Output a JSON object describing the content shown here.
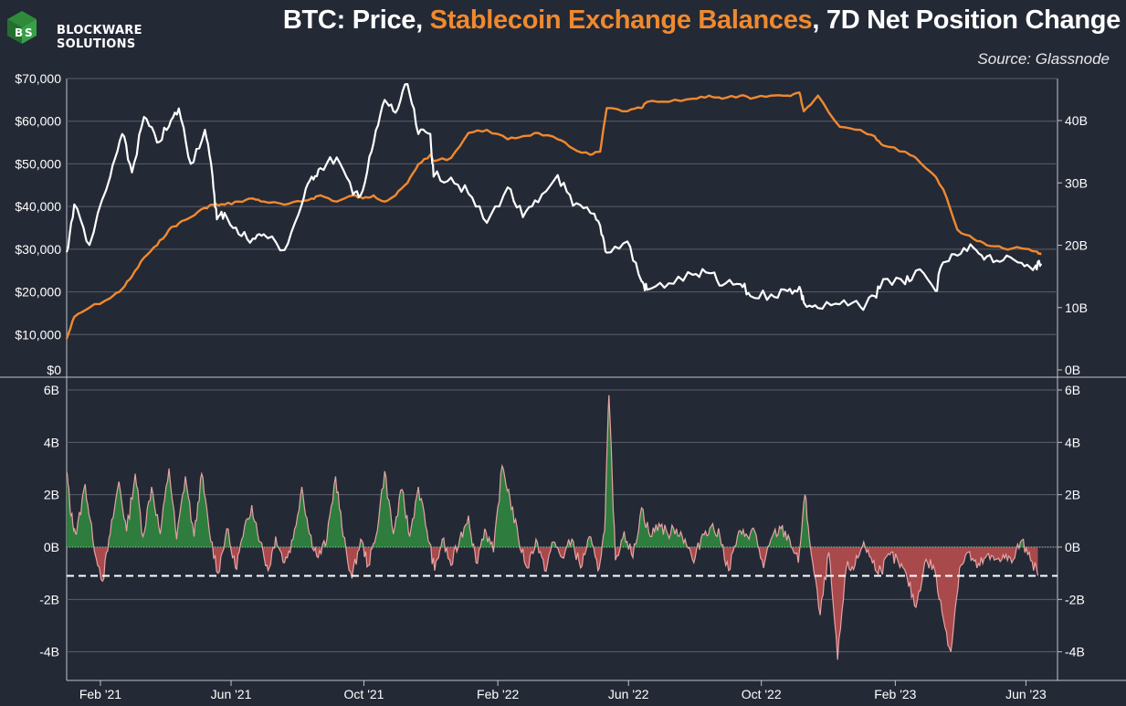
{
  "brand": {
    "line1": "BLOCKWARE",
    "line2": "SOLUTIONS",
    "logo_color": "#2e8b3a"
  },
  "title": {
    "part1": "BTC: Price, ",
    "part2": "Stablecoin Exchange Balances",
    "part3": ", 7D Net Position Change",
    "highlight_color": "#f0892e"
  },
  "source": "Source: Glassnode",
  "colors": {
    "background": "#242936",
    "price": "#ffffff",
    "stablecoin": "#f0892e",
    "positive_fill": "#2e7d3e",
    "negative_fill": "#a8494b",
    "area_stroke": "#e6a3a3",
    "grid": "#5a5f6b"
  },
  "chart_data": [
    {
      "type": "line",
      "name": "top-panel",
      "x": [
        "2021-01-01",
        "2021-01-08",
        "2021-01-22",
        "2021-02-10",
        "2021-02-21",
        "2021-03-02",
        "2021-03-13",
        "2021-03-25",
        "2021-04-05",
        "2021-04-14",
        "2021-04-25",
        "2021-05-08",
        "2021-05-15",
        "2021-05-19",
        "2021-05-26",
        "2021-06-08",
        "2021-06-21",
        "2021-07-01",
        "2021-07-20",
        "2021-08-05",
        "2021-08-14",
        "2021-08-22",
        "2021-09-06",
        "2021-09-21",
        "2021-09-30",
        "2021-10-10",
        "2021-10-20",
        "2021-10-30",
        "2021-11-10",
        "2021-11-20",
        "2021-12-01",
        "2021-12-04",
        "2021-12-20",
        "2022-01-05",
        "2022-01-22",
        "2022-02-10",
        "2022-02-24",
        "2022-03-10",
        "2022-03-28",
        "2022-04-11",
        "2022-04-27",
        "2022-05-06",
        "2022-05-12",
        "2022-05-31",
        "2022-06-13",
        "2022-06-18",
        "2022-07-08",
        "2022-07-30",
        "2022-08-14",
        "2022-08-26",
        "2022-09-12",
        "2022-09-21",
        "2022-10-10",
        "2022-10-25",
        "2022-11-05",
        "2022-11-09",
        "2022-11-22",
        "2022-12-12",
        "2022-12-31",
        "2023-01-13",
        "2023-01-21",
        "2023-02-10",
        "2023-02-20",
        "2023-03-10",
        "2023-03-17",
        "2023-03-30",
        "2023-04-14",
        "2023-04-26",
        "2023-05-11",
        "2023-05-28",
        "2023-06-10",
        "2023-06-15"
      ],
      "series": [
        {
          "axis": "left",
          "values": [
            29300,
            40500,
            31000,
            47000,
            57000,
            48000,
            61000,
            55000,
            58800,
            63000,
            50000,
            58000,
            47000,
            37000,
            38500,
            33500,
            32500,
            33500,
            29800,
            40500,
            47000,
            49000,
            51500,
            42800,
            43800,
            55000,
            65000,
            62000,
            68700,
            57000,
            57000,
            47000,
            46800,
            43000,
            36200,
            44500,
            37500,
            41000,
            47400,
            40200,
            38500,
            35500,
            29200,
            31800,
            22500,
            20500,
            22000,
            24000,
            24400,
            21500,
            21800,
            19000,
            19400,
            20200,
            21200,
            17500,
            16200,
            17100,
            16500,
            19000,
            23000,
            21800,
            25000,
            20200,
            26900,
            28500,
            30300,
            28300,
            27400,
            26800,
            26200,
            26600
          ]
        },
        {
          "axis": "right",
          "values": [
            5,
            8.5,
            10,
            11.5,
            13,
            15,
            18,
            20,
            22.5,
            23.5,
            24.5,
            26,
            26.5,
            26.5,
            26.5,
            27,
            27.5,
            27,
            26.5,
            27,
            27.5,
            28,
            27,
            28,
            27.5,
            28,
            27,
            28,
            30,
            33,
            34.5,
            33.5,
            34,
            38,
            38.5,
            37,
            37.5,
            38,
            37,
            35.5,
            34.5,
            35,
            42,
            41.5,
            42,
            43,
            43,
            43.5,
            44,
            43.5,
            44,
            43.5,
            44,
            44,
            44.5,
            41.5,
            44,
            39,
            38.5,
            37.5,
            36,
            35,
            34,
            31,
            29,
            22.5,
            21,
            20,
            19.5,
            19.5,
            19,
            18.5
          ]
        }
      ],
      "ylim_left": [
        0,
        70000
      ],
      "ylim_right": [
        0,
        45000000000
      ],
      "yticks_left": [
        "$0",
        "$10,000",
        "$20,000",
        "$30,000",
        "$40,000",
        "$50,000",
        "$60,000",
        "$70,000"
      ],
      "yticks_right": [
        "0B",
        "10B",
        "20B",
        "30B",
        "40B"
      ],
      "grid": true
    },
    {
      "type": "area",
      "name": "bottom-panel",
      "x": [
        "2021-01-01",
        "2021-01-05",
        "2021-01-10",
        "2021-01-18",
        "2021-01-25",
        "2021-02-03",
        "2021-02-10",
        "2021-02-18",
        "2021-02-25",
        "2021-03-05",
        "2021-03-12",
        "2021-03-20",
        "2021-03-28",
        "2021-04-05",
        "2021-04-12",
        "2021-04-20",
        "2021-04-28",
        "2021-05-05",
        "2021-05-12",
        "2021-05-20",
        "2021-05-28",
        "2021-06-05",
        "2021-06-12",
        "2021-06-20",
        "2021-06-28",
        "2021-07-05",
        "2021-07-12",
        "2021-07-20",
        "2021-07-28",
        "2021-08-05",
        "2021-08-12",
        "2021-08-20",
        "2021-08-28",
        "2021-09-05",
        "2021-09-12",
        "2021-09-20",
        "2021-09-28",
        "2021-10-05",
        "2021-10-12",
        "2021-10-20",
        "2021-10-28",
        "2021-11-05",
        "2021-11-12",
        "2021-11-20",
        "2021-11-28",
        "2021-12-05",
        "2021-12-12",
        "2021-12-20",
        "2021-12-28",
        "2022-01-05",
        "2022-01-12",
        "2022-01-20",
        "2022-01-28",
        "2022-02-05",
        "2022-02-12",
        "2022-02-20",
        "2022-02-28",
        "2022-03-08",
        "2022-03-16",
        "2022-03-24",
        "2022-04-01",
        "2022-04-10",
        "2022-04-18",
        "2022-04-26",
        "2022-05-04",
        "2022-05-10",
        "2022-05-14",
        "2022-05-20",
        "2022-05-28",
        "2022-06-05",
        "2022-06-13",
        "2022-06-21",
        "2022-06-29",
        "2022-07-07",
        "2022-07-15",
        "2022-07-23",
        "2022-07-31",
        "2022-08-08",
        "2022-08-16",
        "2022-08-24",
        "2022-09-01",
        "2022-09-09",
        "2022-09-17",
        "2022-09-25",
        "2022-10-03",
        "2022-10-11",
        "2022-10-19",
        "2022-10-27",
        "2022-11-04",
        "2022-11-10",
        "2022-11-16",
        "2022-11-24",
        "2022-12-02",
        "2022-12-10",
        "2022-12-18",
        "2022-12-26",
        "2023-01-03",
        "2023-01-11",
        "2023-01-19",
        "2023-01-27",
        "2023-02-04",
        "2023-02-12",
        "2023-02-20",
        "2023-02-28",
        "2023-03-08",
        "2023-03-16",
        "2023-03-24",
        "2023-04-01",
        "2023-04-09",
        "2023-04-17",
        "2023-04-25",
        "2023-05-03",
        "2023-05-11",
        "2023-05-19",
        "2023-05-27",
        "2023-06-04",
        "2023-06-12"
      ],
      "values": [
        2.9,
        1.2,
        0.5,
        2.4,
        0.3,
        -1.3,
        0.5,
        2.5,
        0.6,
        2.8,
        0.4,
        2.3,
        0.5,
        3.0,
        0.3,
        2.7,
        0.4,
        2.8,
        0.6,
        -1.0,
        0.7,
        -0.8,
        0.4,
        1.6,
        0.2,
        -0.9,
        0.4,
        -0.6,
        0.3,
        2.3,
        0.5,
        -0.4,
        0.3,
        2.7,
        0.4,
        -1.2,
        0.3,
        -0.7,
        0.4,
        2.9,
        0.5,
        2.2,
        0.4,
        2.3,
        0.6,
        -0.9,
        0.3,
        -0.7,
        0.3,
        1.2,
        -0.6,
        0.7,
        -0.2,
        3.1,
        1.9,
        0.3,
        -0.8,
        0.3,
        -0.9,
        0.2,
        -0.4,
        0.3,
        -0.8,
        0.4,
        -0.9,
        0.6,
        5.8,
        -0.5,
        0.6,
        -0.4,
        1.5,
        0.4,
        0.9,
        0.5,
        0.7,
        0.3,
        -0.6,
        0.5,
        0.8,
        0.4,
        -0.9,
        0.4,
        0.5,
        0.6,
        -0.8,
        0.4,
        0.7,
        0.3,
        -0.6,
        2.0,
        -0.3,
        -2.6,
        -0.2,
        -4.3,
        -0.8,
        -0.7,
        0.2,
        -0.6,
        -0.9,
        -0.3,
        -0.6,
        -1.2,
        -2.3,
        -0.6,
        -0.7,
        -2.5,
        -4.0,
        -0.8,
        -0.2,
        -0.8,
        -0.4,
        -0.5,
        -0.3,
        -0.6,
        0.2,
        -0.2,
        -1.1
      ],
      "ylim": [
        -4.5,
        6.2
      ],
      "yticks": [
        "-4B",
        "-2B",
        "0B",
        "2B",
        "4B",
        "6B"
      ],
      "threshold_line": -1.1,
      "grid": true
    }
  ],
  "xticks": [
    "Feb '21",
    "Jun '21",
    "Oct '21",
    "Feb '22",
    "Jun '22",
    "Oct '22",
    "Feb '23",
    "Jun '23"
  ]
}
